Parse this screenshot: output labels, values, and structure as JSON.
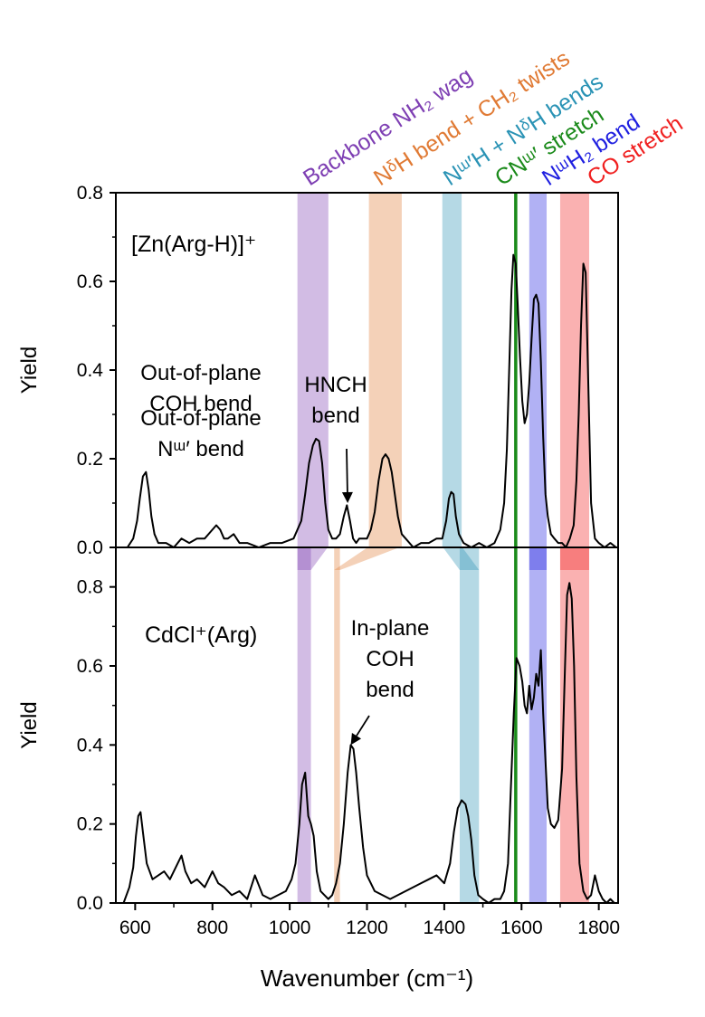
{
  "colors": {
    "backbone": "#7e3fb3",
    "ndh": "#e07a34",
    "nwh": "#2a93b5",
    "cnw": "#1a8a1a",
    "nwh2": "#1f1fe0",
    "co": "#f02020",
    "line": "#000000"
  },
  "band_labels": [
    {
      "text": "Backbone NH₂ wag",
      "color_key": "backbone"
    },
    {
      "text": "NᵟH bend + CH₂ twists",
      "color_key": "ndh"
    },
    {
      "text": "Nᵚ′H + NᵟH bends",
      "color_key": "nwh"
    },
    {
      "text": "CNᵚ′ stretch",
      "color_key": "cnw"
    },
    {
      "text": "NᵚH₂ bend",
      "color_key": "nwh2"
    },
    {
      "text": "CO stretch",
      "color_key": "co"
    }
  ],
  "chart_data": [
    {
      "type": "line",
      "title": "[Zn(Arg-H)]⁺",
      "xlabel": "Wavenumber (cm⁻¹)",
      "ylabel": "Yield",
      "xlim": [
        550,
        1850
      ],
      "ylim": [
        0,
        0.8
      ],
      "yticks": [
        "0.0",
        "0.2",
        "0.4",
        "0.6",
        "0.8"
      ],
      "bands": [
        {
          "key": "backbone",
          "range": [
            1020,
            1100
          ]
        },
        {
          "key": "ndh",
          "range": [
            1205,
            1290
          ]
        },
        {
          "key": "nwh",
          "range": [
            1395,
            1445
          ]
        },
        {
          "key": "nwh2",
          "range": [
            1620,
            1665
          ]
        },
        {
          "key": "co",
          "range": [
            1700,
            1775
          ]
        }
      ],
      "vline": 1585,
      "series": [
        {
          "x": [
            580,
            595,
            605,
            612,
            620,
            628,
            635,
            642,
            650,
            660,
            680,
            700,
            720,
            740,
            760,
            780,
            800,
            810,
            820,
            830,
            840,
            855,
            870,
            890,
            920,
            950,
            980,
            1010,
            1030,
            1040,
            1050,
            1060,
            1068,
            1076,
            1084,
            1092,
            1100,
            1110,
            1120,
            1130,
            1140,
            1148,
            1156,
            1164,
            1172,
            1180,
            1190,
            1200,
            1210,
            1220,
            1230,
            1240,
            1248,
            1256,
            1264,
            1272,
            1280,
            1290,
            1300,
            1320,
            1340,
            1360,
            1380,
            1395,
            1405,
            1412,
            1418,
            1424,
            1430,
            1438,
            1450,
            1470,
            1490,
            1510,
            1530,
            1545,
            1555,
            1562,
            1568,
            1574,
            1579,
            1585,
            1590,
            1596,
            1602,
            1608,
            1614,
            1620,
            1626,
            1632,
            1638,
            1644,
            1650,
            1656,
            1662,
            1668,
            1676,
            1685,
            1695,
            1705,
            1715,
            1725,
            1735,
            1742,
            1748,
            1754,
            1760,
            1766,
            1772,
            1780,
            1790,
            1800,
            1815,
            1830,
            1845
          ],
          "y": [
            0.0,
            0.02,
            0.06,
            0.11,
            0.16,
            0.17,
            0.13,
            0.07,
            0.03,
            0.01,
            0.01,
            0.0,
            0.02,
            0.01,
            0.02,
            0.02,
            0.04,
            0.05,
            0.04,
            0.02,
            0.02,
            0.03,
            0.01,
            0.01,
            0.0,
            0.01,
            0.01,
            0.02,
            0.06,
            0.12,
            0.19,
            0.23,
            0.245,
            0.24,
            0.19,
            0.1,
            0.04,
            0.02,
            0.02,
            0.03,
            0.07,
            0.095,
            0.06,
            0.02,
            0.01,
            0.02,
            0.02,
            0.02,
            0.04,
            0.08,
            0.15,
            0.2,
            0.21,
            0.2,
            0.17,
            0.12,
            0.07,
            0.03,
            0.02,
            0.0,
            0.01,
            0.01,
            0.02,
            0.02,
            0.06,
            0.11,
            0.125,
            0.12,
            0.07,
            0.03,
            0.01,
            0.0,
            0.01,
            0.0,
            0.01,
            0.04,
            0.1,
            0.22,
            0.4,
            0.58,
            0.66,
            0.64,
            0.55,
            0.43,
            0.33,
            0.28,
            0.3,
            0.37,
            0.47,
            0.56,
            0.57,
            0.55,
            0.42,
            0.25,
            0.12,
            0.07,
            0.03,
            0.02,
            0.01,
            0.01,
            0.0,
            0.02,
            0.05,
            0.15,
            0.3,
            0.5,
            0.64,
            0.62,
            0.4,
            0.1,
            0.02,
            0.01,
            0.0,
            0.01,
            0.0
          ]
        }
      ],
      "annotations": [
        {
          "lines": [
            "Out-of-plane",
            "Nᵚ′ bend"
          ]
        },
        {
          "lines": [
            "HNCH",
            "bend"
          ],
          "arrow_x": 1150,
          "arrow_y": 0.1
        }
      ]
    },
    {
      "type": "line",
      "title": "CdCl⁺(Arg)",
      "xlabel": "Wavenumber (cm⁻¹)",
      "ylabel": "Yield",
      "xlim": [
        550,
        1850
      ],
      "ylim": [
        0,
        0.9
      ],
      "yticks": [
        "0.0",
        "0.2",
        "0.4",
        "0.6",
        "0.8"
      ],
      "bands": [
        {
          "key": "backbone",
          "range": [
            1020,
            1055
          ]
        },
        {
          "key": "ndh",
          "range": [
            1115,
            1130
          ]
        },
        {
          "key": "nwh",
          "range": [
            1440,
            1490
          ]
        },
        {
          "key": "nwh2",
          "range": [
            1620,
            1665
          ]
        },
        {
          "key": "co",
          "range": [
            1700,
            1775
          ]
        }
      ],
      "vline": 1585,
      "series": [
        {
          "x": [
            570,
            585,
            595,
            602,
            608,
            614,
            620,
            630,
            645,
            660,
            675,
            690,
            705,
            720,
            730,
            745,
            760,
            780,
            800,
            815,
            830,
            850,
            870,
            890,
            910,
            930,
            950,
            970,
            990,
            1005,
            1015,
            1025,
            1032,
            1040,
            1048,
            1055,
            1062,
            1070,
            1080,
            1090,
            1100,
            1110,
            1120,
            1130,
            1140,
            1150,
            1158,
            1165,
            1172,
            1180,
            1190,
            1200,
            1220,
            1240,
            1260,
            1280,
            1300,
            1320,
            1340,
            1360,
            1380,
            1400,
            1415,
            1425,
            1435,
            1445,
            1455,
            1462,
            1470,
            1478,
            1488,
            1500,
            1515,
            1530,
            1545,
            1555,
            1565,
            1572,
            1580,
            1587,
            1595,
            1602,
            1608,
            1614,
            1620,
            1626,
            1632,
            1638,
            1644,
            1650,
            1656,
            1662,
            1668,
            1676,
            1685,
            1695,
            1705,
            1712,
            1718,
            1724,
            1730,
            1736,
            1742,
            1750,
            1760,
            1770,
            1780,
            1790,
            1800,
            1810,
            1820,
            1830,
            1840
          ],
          "y": [
            0.0,
            0.04,
            0.09,
            0.17,
            0.22,
            0.23,
            0.18,
            0.1,
            0.06,
            0.07,
            0.08,
            0.06,
            0.09,
            0.12,
            0.08,
            0.05,
            0.06,
            0.04,
            0.08,
            0.05,
            0.04,
            0.02,
            0.03,
            0.01,
            0.07,
            0.02,
            0.01,
            0.02,
            0.03,
            0.06,
            0.1,
            0.2,
            0.3,
            0.33,
            0.22,
            0.2,
            0.17,
            0.08,
            0.03,
            0.02,
            0.01,
            0.02,
            0.05,
            0.1,
            0.2,
            0.33,
            0.4,
            0.39,
            0.33,
            0.24,
            0.14,
            0.07,
            0.03,
            0.02,
            0.01,
            0.02,
            0.03,
            0.04,
            0.05,
            0.06,
            0.07,
            0.05,
            0.1,
            0.18,
            0.24,
            0.26,
            0.25,
            0.22,
            0.16,
            0.07,
            0.02,
            0.01,
            0.0,
            0.01,
            0.01,
            0.03,
            0.1,
            0.28,
            0.48,
            0.62,
            0.6,
            0.56,
            0.5,
            0.48,
            0.55,
            0.49,
            0.52,
            0.58,
            0.55,
            0.64,
            0.48,
            0.36,
            0.24,
            0.2,
            0.19,
            0.21,
            0.34,
            0.58,
            0.78,
            0.81,
            0.77,
            0.6,
            0.32,
            0.1,
            0.03,
            0.01,
            0.02,
            0.07,
            0.03,
            0.01,
            0.0,
            0.01,
            0.0
          ]
        }
      ],
      "annotations": [
        {
          "lines": [
            "Out-of-plane",
            "COH bend"
          ]
        },
        {
          "lines": [
            "In-plane",
            "COH",
            "bend"
          ],
          "arrow_x": 1158,
          "arrow_y": 0.4
        }
      ]
    }
  ]
}
